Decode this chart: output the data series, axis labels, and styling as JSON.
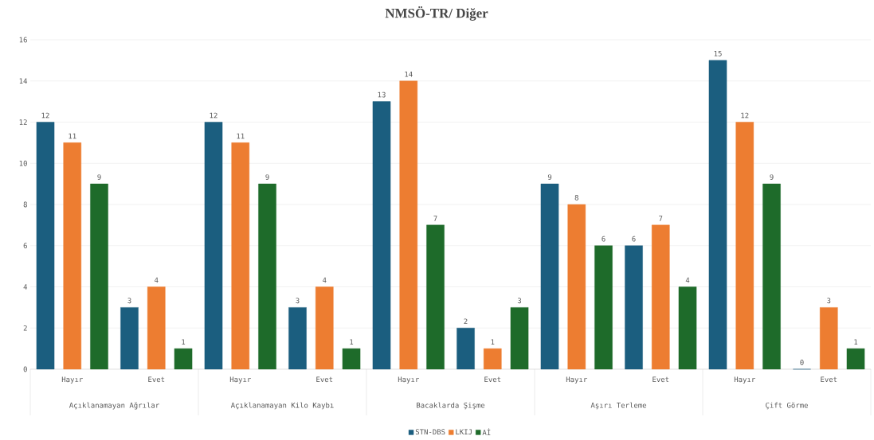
{
  "chart_data": {
    "type": "bar",
    "title": "NMSÖ-TR/ Diğer",
    "categories": [
      "Hayır",
      "Evet",
      "Hayır",
      "Evet",
      "Hayır",
      "Evet",
      "Hayır",
      "Evet",
      "Hayır",
      "Evet"
    ],
    "annotations": [
      "Açıklanamayan Ağrılar",
      "Açıklanamayan Kilo Kaybı",
      "Bacaklarda Şişme",
      "Aşırı Terleme",
      "Çift Görme"
    ],
    "series": [
      {
        "name": "STN-DBS",
        "color": "#1b5e7f",
        "values": [
          12,
          3,
          12,
          3,
          13,
          2,
          9,
          6,
          15,
          0
        ]
      },
      {
        "name": "LKIJ",
        "color": "#ed7d31",
        "values": [
          11,
          4,
          11,
          4,
          14,
          1,
          8,
          7,
          12,
          3
        ]
      },
      {
        "name": "Aİ",
        "color": "#1e6b2a",
        "values": [
          9,
          1,
          9,
          1,
          7,
          3,
          6,
          4,
          9,
          1
        ]
      }
    ],
    "ylim": [
      0,
      16
    ],
    "yticks": [
      0,
      2,
      4,
      6,
      8,
      10,
      12,
      14,
      16
    ],
    "grid": "y",
    "legend": "bottom",
    "data_labels": true
  }
}
